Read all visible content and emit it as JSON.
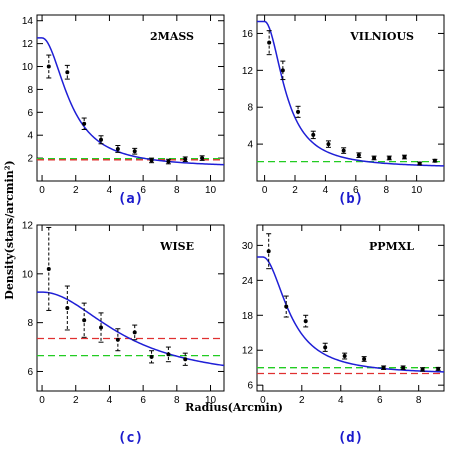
{
  "figure": {
    "ylabel": "Density(stars/arcmin²)",
    "xlabel": "Radius(Arcmin)",
    "colors": {
      "fit": "#1f1fd6",
      "background_green": "#22cc22",
      "background_red": "#e03030",
      "points": "#000000"
    }
  },
  "chart_data": [
    {
      "type": "scatter",
      "name": "2MASS",
      "letter": "(a)",
      "xlim": [
        -0.3,
        10.8
      ],
      "ylim": [
        0,
        14.5
      ],
      "xticks": [
        0,
        2,
        4,
        6,
        8,
        10
      ],
      "yticks": [
        2,
        4,
        6,
        8,
        10,
        12,
        14
      ],
      "points": [
        {
          "x": 0.4,
          "y": 10.0,
          "err": 1.0
        },
        {
          "x": 1.5,
          "y": 9.5,
          "err": 0.6
        },
        {
          "x": 2.5,
          "y": 5.0,
          "err": 0.5
        },
        {
          "x": 3.5,
          "y": 3.6,
          "err": 0.35
        },
        {
          "x": 4.5,
          "y": 2.8,
          "err": 0.3
        },
        {
          "x": 5.5,
          "y": 2.6,
          "err": 0.25
        },
        {
          "x": 6.5,
          "y": 1.8,
          "err": 0.2
        },
        {
          "x": 7.5,
          "y": 1.7,
          "err": 0.2
        },
        {
          "x": 8.5,
          "y": 1.9,
          "err": 0.2
        },
        {
          "x": 9.5,
          "y": 2.0,
          "err": 0.2
        }
      ],
      "fit": {
        "f0": 12.5,
        "rc": 1.7,
        "fbg": 1.15
      },
      "bg_lines": [
        {
          "color": "green",
          "y": 1.95
        },
        {
          "color": "red",
          "y": 1.85
        }
      ]
    },
    {
      "type": "scatter",
      "name": "VILNIOUS",
      "letter": "(b)",
      "xlim": [
        -0.5,
        11.8
      ],
      "ylim": [
        0,
        18
      ],
      "xticks": [
        0,
        2,
        4,
        6,
        8,
        10
      ],
      "yticks": [
        4,
        8,
        12,
        16
      ],
      "points": [
        {
          "x": 0.3,
          "y": 15.0,
          "err": 1.3
        },
        {
          "x": 1.2,
          "y": 12.0,
          "err": 1.0
        },
        {
          "x": 2.2,
          "y": 7.5,
          "err": 0.6
        },
        {
          "x": 3.2,
          "y": 5.0,
          "err": 0.4
        },
        {
          "x": 4.2,
          "y": 4.0,
          "err": 0.35
        },
        {
          "x": 5.2,
          "y": 3.3,
          "err": 0.3
        },
        {
          "x": 6.2,
          "y": 2.8,
          "err": 0.25
        },
        {
          "x": 7.2,
          "y": 2.5,
          "err": 0.2
        },
        {
          "x": 8.2,
          "y": 2.5,
          "err": 0.2
        },
        {
          "x": 9.2,
          "y": 2.6,
          "err": 0.2
        },
        {
          "x": 10.2,
          "y": 1.9,
          "err": 0.15
        },
        {
          "x": 11.2,
          "y": 2.2,
          "err": 0.15
        }
      ],
      "fit": {
        "f0": 17.3,
        "rc": 1.45,
        "fbg": 1.4
      },
      "bg_lines": [
        {
          "color": "green",
          "y": 2.1
        }
      ]
    },
    {
      "type": "scatter",
      "name": "WISE",
      "letter": "(c)",
      "xlim": [
        -0.3,
        10.8
      ],
      "ylim": [
        5.2,
        12
      ],
      "xticks": [
        0,
        2,
        4,
        6,
        8,
        10
      ],
      "yticks": [
        6,
        8,
        10,
        12
      ],
      "points": [
        {
          "x": 0.4,
          "y": 10.2,
          "err": 1.7
        },
        {
          "x": 1.5,
          "y": 8.6,
          "err": 0.9
        },
        {
          "x": 2.5,
          "y": 8.1,
          "err": 0.7
        },
        {
          "x": 3.5,
          "y": 7.8,
          "err": 0.6
        },
        {
          "x": 4.5,
          "y": 7.3,
          "err": 0.45
        },
        {
          "x": 5.5,
          "y": 7.6,
          "err": 0.3
        },
        {
          "x": 6.5,
          "y": 6.6,
          "err": 0.25
        },
        {
          "x": 7.5,
          "y": 6.7,
          "err": 0.3
        },
        {
          "x": 8.5,
          "y": 6.5,
          "err": 0.25
        }
      ],
      "fit": {
        "f0": 9.25,
        "rc": 5.0,
        "fbg": 5.6
      },
      "bg_lines": [
        {
          "color": "red",
          "y": 7.35
        },
        {
          "color": "green",
          "y": 6.65
        }
      ]
    },
    {
      "type": "scatter",
      "name": "PPMXL",
      "letter": "(d)",
      "xlim": [
        -0.3,
        9.3
      ],
      "ylim": [
        5,
        33.5
      ],
      "xticks": [
        0,
        2,
        4,
        6,
        8
      ],
      "yticks": [
        6,
        12,
        18,
        24,
        30
      ],
      "points": [
        {
          "x": 0.3,
          "y": 29.0,
          "err": 3.0
        },
        {
          "x": 1.2,
          "y": 19.5,
          "err": 1.8
        },
        {
          "x": 2.2,
          "y": 17.0,
          "err": 1.0
        },
        {
          "x": 3.2,
          "y": 12.5,
          "err": 0.7
        },
        {
          "x": 4.2,
          "y": 11.0,
          "err": 0.5
        },
        {
          "x": 5.2,
          "y": 10.5,
          "err": 0.4
        },
        {
          "x": 6.2,
          "y": 9.0,
          "err": 0.3
        },
        {
          "x": 7.2,
          "y": 9.0,
          "err": 0.3
        },
        {
          "x": 8.2,
          "y": 8.7,
          "err": 0.3
        },
        {
          "x": 9.0,
          "y": 8.8,
          "err": 0.25
        }
      ],
      "fit": {
        "f0": 28.0,
        "rc": 1.45,
        "fbg": 7.8
      },
      "bg_lines": [
        {
          "color": "green",
          "y": 9.0
        },
        {
          "color": "red",
          "y": 8.0
        }
      ]
    }
  ]
}
